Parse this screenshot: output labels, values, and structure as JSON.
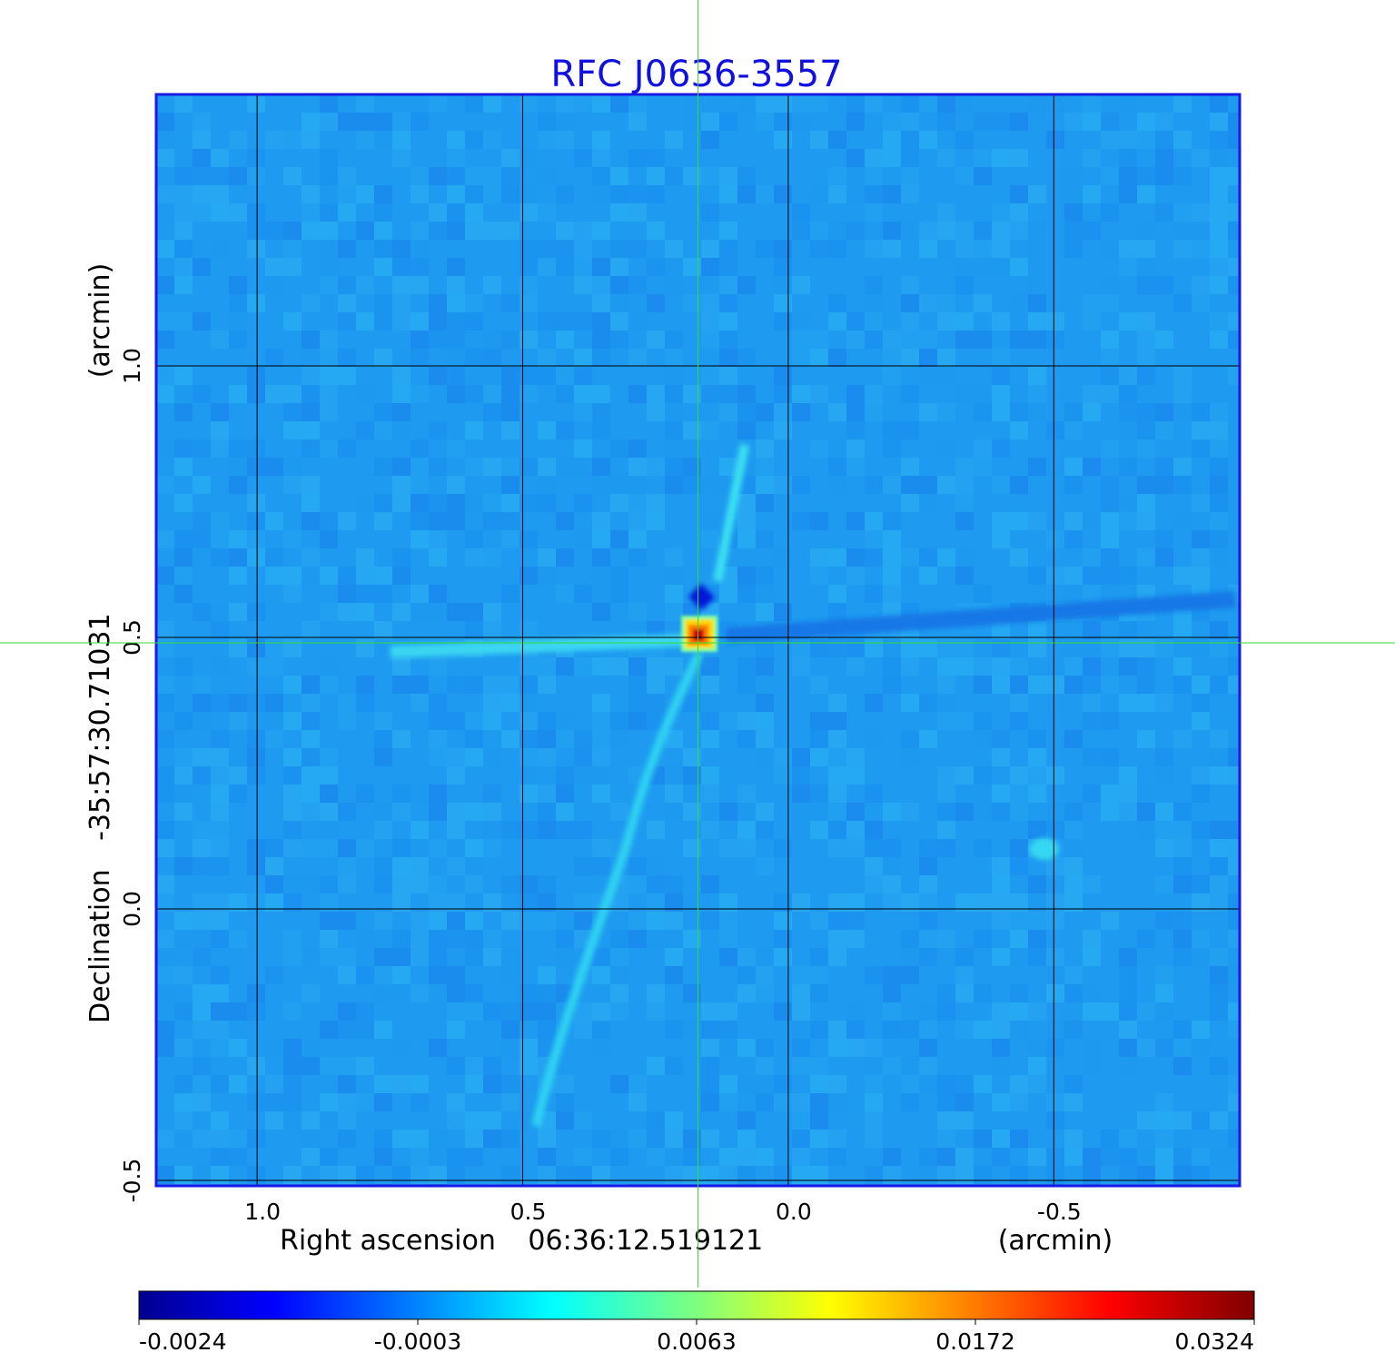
{
  "chart_data": {
    "type": "heatmap",
    "title": "RFC J0636-3557",
    "xlabel": "Right ascension",
    "xlabel_center": "06:36:12.519121",
    "xlabel_unit": "(arcmin)",
    "ylabel": "Declination",
    "ylabel_center": "-35:57:30.71031",
    "ylabel_unit": "(arcmin)",
    "xlim": [
      1.19,
      -0.85
    ],
    "ylim": [
      -0.51,
      1.5
    ],
    "x_ticks": [
      "1.0",
      "0.5",
      "0.0",
      "-0.5"
    ],
    "x_tick_values": [
      1.0,
      0.5,
      0.0,
      -0.5
    ],
    "y_ticks": [
      "-0.5",
      "0.0",
      "0.5",
      "1.0"
    ],
    "y_tick_values": [
      -0.5,
      0.0,
      0.5,
      1.0
    ],
    "grid": true,
    "crosshair": {
      "x": 0.17,
      "y": 0.49
    },
    "source_peak": {
      "x": 0.17,
      "y": 0.49,
      "value": 0.0324
    },
    "colorbar": {
      "ticks": [
        "-0.0024",
        "-0.0003",
        "0.0063",
        "0.0172",
        "0.0324"
      ],
      "colormap": "jet"
    },
    "colors": {
      "title": "#1010e0",
      "frame": "#1a1ae6",
      "crosshair": "#33dd33",
      "background_field": "#1e9bf0",
      "grid": "#000000"
    }
  }
}
